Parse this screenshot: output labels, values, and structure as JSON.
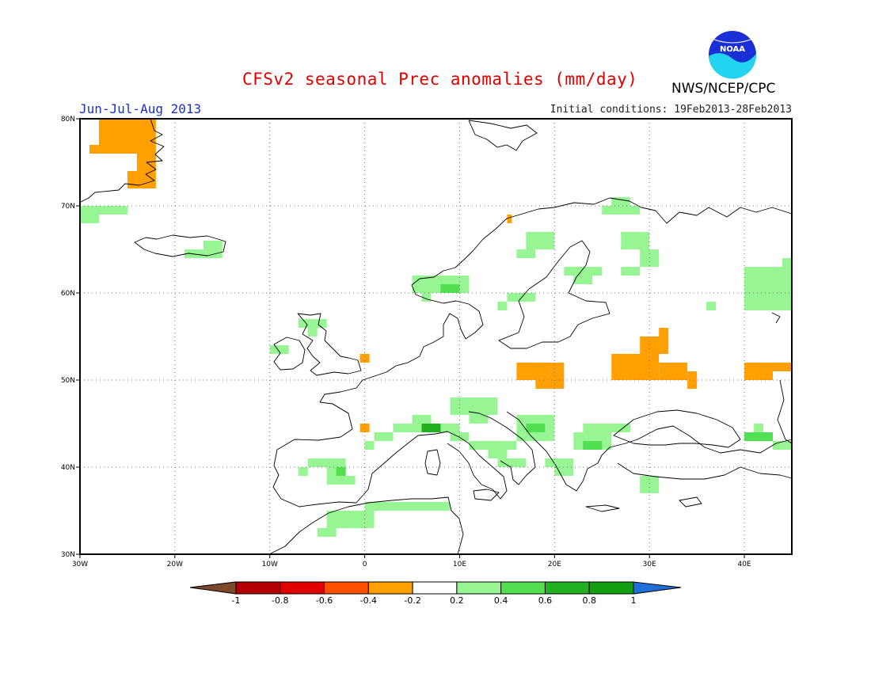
{
  "title": "CFSv2 seasonal Prec anomalies (mm/day)",
  "period": "Jun-Jul-Aug 2013",
  "initial_conditions": "Initial conditions: 19Feb2013-28Feb2013",
  "agency": "NWS/NCEP/CPC",
  "logo_text": "NOAA",
  "axes": {
    "lon_ticks": [
      "30W",
      "20W",
      "10W",
      "0",
      "10E",
      "20E",
      "30E",
      "40E"
    ],
    "lat_ticks": [
      "80N",
      "70N",
      "60N",
      "50N",
      "40N",
      "30N"
    ]
  },
  "colorbar": {
    "labels": [
      "-1",
      "-0.8",
      "-0.6",
      "-0.4",
      "-0.2",
      "0.2",
      "0.4",
      "0.6",
      "0.8",
      "1"
    ],
    "colors": [
      "#7a4a2a",
      "#b40000",
      "#e00000",
      "#ff5000",
      "#ff9f00",
      "#ffffff",
      "#98f593",
      "#52e052",
      "#20b020",
      "#12a012",
      "#1e6fd8"
    ]
  },
  "colors": {
    "neg_light": "#ff9f00",
    "pos_light": "#98f593",
    "pos_mid": "#52e052",
    "pos_dark": "#20b020"
  },
  "anomaly_cells": [
    {
      "lon": [
        -28,
        -22
      ],
      "lat": [
        76,
        80
      ],
      "cls": "neg_light"
    },
    {
      "lon": [
        -29,
        -28
      ],
      "lat": [
        76,
        77
      ],
      "cls": "neg_light"
    },
    {
      "lon": [
        -24,
        -22
      ],
      "lat": [
        72,
        76
      ],
      "cls": "neg_light"
    },
    {
      "lon": [
        -25,
        -23
      ],
      "lat": [
        72,
        74
      ],
      "cls": "neg_light"
    },
    {
      "lon": [
        -30,
        -25
      ],
      "lat": [
        69,
        70
      ],
      "cls": "pos_light"
    },
    {
      "lon": [
        -30,
        -28
      ],
      "lat": [
        68,
        70
      ],
      "cls": "pos_light"
    },
    {
      "lon": [
        -19,
        -15
      ],
      "lat": [
        64,
        65
      ],
      "cls": "pos_light"
    },
    {
      "lon": [
        -17,
        -15
      ],
      "lat": [
        65,
        66
      ],
      "cls": "pos_light"
    },
    {
      "lon": [
        15,
        15.5
      ],
      "lat": [
        68,
        69
      ],
      "cls": "neg_light"
    },
    {
      "lon": [
        25,
        29
      ],
      "lat": [
        69,
        70
      ],
      "cls": "pos_light"
    },
    {
      "lon": [
        26,
        28
      ],
      "lat": [
        70,
        71
      ],
      "cls": "pos_light"
    },
    {
      "lon": [
        17,
        20
      ],
      "lat": [
        65,
        67
      ],
      "cls": "pos_light"
    },
    {
      "lon": [
        16,
        18
      ],
      "lat": [
        64,
        65
      ],
      "cls": "pos_light"
    },
    {
      "lon": [
        27,
        30
      ],
      "lat": [
        65,
        67
      ],
      "cls": "pos_light"
    },
    {
      "lon": [
        29,
        31
      ],
      "lat": [
        63,
        65
      ],
      "cls": "pos_light"
    },
    {
      "lon": [
        21,
        25
      ],
      "lat": [
        62,
        63
      ],
      "cls": "pos_light"
    },
    {
      "lon": [
        22,
        24
      ],
      "lat": [
        61,
        62
      ],
      "cls": "pos_light"
    },
    {
      "lon": [
        27,
        29
      ],
      "lat": [
        62,
        63
      ],
      "cls": "pos_light"
    },
    {
      "lon": [
        5,
        11
      ],
      "lat": [
        60,
        62
      ],
      "cls": "pos_light"
    },
    {
      "lon": [
        8,
        10
      ],
      "lat": [
        60,
        61
      ],
      "cls": "pos_mid"
    },
    {
      "lon": [
        6,
        7
      ],
      "lat": [
        59,
        60
      ],
      "cls": "pos_light"
    },
    {
      "lon": [
        15,
        18
      ],
      "lat": [
        59,
        60
      ],
      "cls": "pos_light"
    },
    {
      "lon": [
        14,
        15
      ],
      "lat": [
        58,
        59
      ],
      "cls": "pos_light"
    },
    {
      "lon": [
        36,
        37
      ],
      "lat": [
        58,
        59
      ],
      "cls": "pos_light"
    },
    {
      "lon": [
        40,
        45
      ],
      "lat": [
        58,
        63
      ],
      "cls": "pos_light"
    },
    {
      "lon": [
        44,
        45
      ],
      "lat": [
        63,
        64
      ],
      "cls": "pos_light"
    },
    {
      "lon": [
        -7,
        -4
      ],
      "lat": [
        56,
        57
      ],
      "cls": "pos_light"
    },
    {
      "lon": [
        -6,
        -5
      ],
      "lat": [
        55,
        56
      ],
      "cls": "pos_light"
    },
    {
      "lon": [
        -10,
        -8
      ],
      "lat": [
        53,
        54
      ],
      "cls": "pos_light"
    },
    {
      "lon": [
        -0.5,
        0.5
      ],
      "lat": [
        52,
        53
      ],
      "cls": "neg_light"
    },
    {
      "lon": [
        29,
        32
      ],
      "lat": [
        53,
        55
      ],
      "cls": "neg_light"
    },
    {
      "lon": [
        31,
        32
      ],
      "lat": [
        55,
        56
      ],
      "cls": "neg_light"
    },
    {
      "lon": [
        26,
        31
      ],
      "lat": [
        50,
        53
      ],
      "cls": "neg_light"
    },
    {
      "lon": [
        31,
        34
      ],
      "lat": [
        50,
        52
      ],
      "cls": "neg_light"
    },
    {
      "lon": [
        34,
        35
      ],
      "lat": [
        49,
        51
      ],
      "cls": "neg_light"
    },
    {
      "lon": [
        16,
        21
      ],
      "lat": [
        50,
        52
      ],
      "cls": "neg_light"
    },
    {
      "lon": [
        18,
        21
      ],
      "lat": [
        49,
        50
      ],
      "cls": "neg_light"
    },
    {
      "lon": [
        40,
        45
      ],
      "lat": [
        51,
        52
      ],
      "cls": "neg_light"
    },
    {
      "lon": [
        40,
        43
      ],
      "lat": [
        50,
        51
      ],
      "cls": "neg_light"
    },
    {
      "lon": [
        9,
        14
      ],
      "lat": [
        46,
        48
      ],
      "cls": "pos_light"
    },
    {
      "lon": [
        11,
        13
      ],
      "lat": [
        45,
        46
      ],
      "cls": "pos_light"
    },
    {
      "lon": [
        3,
        10
      ],
      "lat": [
        44,
        45
      ],
      "cls": "pos_light"
    },
    {
      "lon": [
        5,
        7
      ],
      "lat": [
        45,
        46
      ],
      "cls": "pos_light"
    },
    {
      "lon": [
        6,
        8
      ],
      "lat": [
        44,
        45
      ],
      "cls": "pos_dark"
    },
    {
      "lon": [
        -0.5,
        0.5
      ],
      "lat": [
        44,
        45
      ],
      "cls": "neg_light"
    },
    {
      "lon": [
        1,
        3
      ],
      "lat": [
        43,
        44
      ],
      "cls": "pos_light"
    },
    {
      "lon": [
        0,
        1
      ],
      "lat": [
        42,
        43
      ],
      "cls": "pos_light"
    },
    {
      "lon": [
        9,
        11
      ],
      "lat": [
        43,
        44
      ],
      "cls": "pos_light"
    },
    {
      "lon": [
        11,
        16
      ],
      "lat": [
        42,
        43
      ],
      "cls": "pos_light"
    },
    {
      "lon": [
        13,
        15
      ],
      "lat": [
        41,
        42
      ],
      "cls": "pos_light"
    },
    {
      "lon": [
        14,
        17
      ],
      "lat": [
        40,
        41
      ],
      "cls": "pos_light"
    },
    {
      "lon": [
        16,
        20
      ],
      "lat": [
        43,
        46
      ],
      "cls": "pos_light"
    },
    {
      "lon": [
        17,
        19
      ],
      "lat": [
        44,
        45
      ],
      "cls": "pos_mid"
    },
    {
      "lon": [
        23,
        28
      ],
      "lat": [
        44,
        45
      ],
      "cls": "pos_light"
    },
    {
      "lon": [
        22,
        26
      ],
      "lat": [
        42,
        44
      ],
      "cls": "pos_light"
    },
    {
      "lon": [
        23,
        25
      ],
      "lat": [
        42,
        43
      ],
      "cls": "pos_mid"
    },
    {
      "lon": [
        20,
        22
      ],
      "lat": [
        39,
        41
      ],
      "cls": "pos_light"
    },
    {
      "lon": [
        19,
        20
      ],
      "lat": [
        40,
        41
      ],
      "cls": "pos_light"
    },
    {
      "lon": [
        29,
        31
      ],
      "lat": [
        37,
        39
      ],
      "cls": "pos_light"
    },
    {
      "lon": [
        40,
        43
      ],
      "lat": [
        43,
        44
      ],
      "cls": "pos_mid"
    },
    {
      "lon": [
        41,
        42
      ],
      "lat": [
        44,
        45
      ],
      "cls": "pos_light"
    },
    {
      "lon": [
        43,
        45
      ],
      "lat": [
        42,
        43
      ],
      "cls": "pos_light"
    },
    {
      "lon": [
        -6,
        -2
      ],
      "lat": [
        40,
        41
      ],
      "cls": "pos_light"
    },
    {
      "lon": [
        -7,
        -6
      ],
      "lat": [
        39,
        40
      ],
      "cls": "pos_light"
    },
    {
      "lon": [
        -4,
        -2
      ],
      "lat": [
        38,
        40
      ],
      "cls": "pos_light"
    },
    {
      "lon": [
        -3,
        -2
      ],
      "lat": [
        39,
        40
      ],
      "cls": "pos_mid"
    },
    {
      "lon": [
        -2,
        -1
      ],
      "lat": [
        38,
        39
      ],
      "cls": "pos_light"
    },
    {
      "lon": [
        0,
        9
      ],
      "lat": [
        35,
        36
      ],
      "cls": "pos_light"
    },
    {
      "lon": [
        -1,
        0
      ],
      "lat": [
        34,
        35
      ],
      "cls": "pos_light"
    },
    {
      "lon": [
        -4,
        1
      ],
      "lat": [
        33,
        35
      ],
      "cls": "pos_light"
    },
    {
      "lon": [
        -5,
        -3
      ],
      "lat": [
        32,
        33
      ],
      "cls": "pos_light"
    }
  ]
}
